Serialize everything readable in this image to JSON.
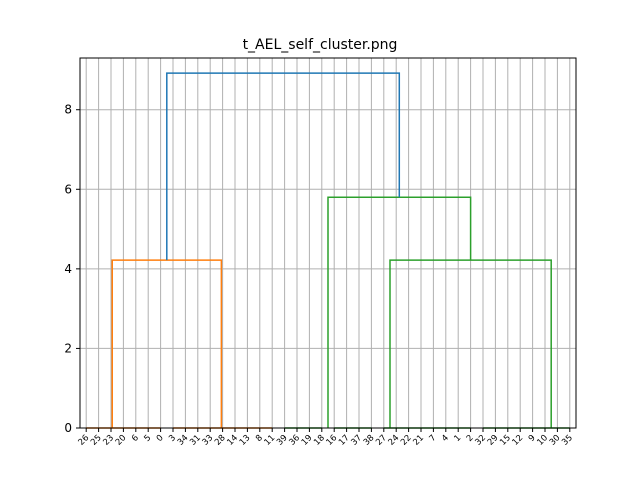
{
  "chart_data": {
    "type": "dendrogram",
    "title": "t_AEL_self_cluster.png",
    "xlabel": "",
    "ylabel": "",
    "ylim": [
      0,
      9.3
    ],
    "yticks": [
      0,
      2,
      4,
      6,
      8
    ],
    "grid": true,
    "leaf_labels": [
      "26",
      "25",
      "23",
      "20",
      "6",
      "5",
      "0",
      "3",
      "34",
      "31",
      "33",
      "28",
      "14",
      "13",
      "8",
      "11",
      "39",
      "36",
      "19",
      "18",
      "16",
      "17",
      "37",
      "38",
      "27",
      "24",
      "22",
      "21",
      "7",
      "4",
      "1",
      "2",
      "32",
      "29",
      "15",
      "12",
      "9",
      "10",
      "30",
      "35"
    ],
    "merges": [
      {
        "left": [
          0,
          6
        ],
        "right": [
          7,
          15
        ],
        "height": 4.22,
        "color": "#ff7f0e"
      },
      {
        "left": [
          16,
          19
        ],
        "right": [
          20,
          23
        ],
        "height": 5.8,
        "color": "#2ca02c",
        "left_is_cluster": false
      },
      {
        "left": [
          24,
          31
        ],
        "right": [
          32,
          39
        ],
        "height": 4.22,
        "color": "#2ca02c"
      },
      {
        "left": [
          16,
          23
        ],
        "right": [
          24,
          39
        ],
        "height": 5.8,
        "color": "#2ca02c"
      },
      {
        "left": [
          0,
          15
        ],
        "right": [
          16,
          39
        ],
        "height": 8.92,
        "color": "#1f77b4"
      }
    ],
    "links": [
      {
        "x": [
          0.5,
          3,
          3,
          6.5
        ],
        "y": [
          0,
          0,
          0,
          0
        ],
        "color": "#ff7f0e"
      },
      {
        "x": [
          3,
          3,
          13,
          13
        ],
        "y": [
          0,
          4.22,
          4.22,
          0
        ],
        "color": "#ff7f0e"
      },
      {
        "x": [
          10,
          13,
          13,
          18.5
        ],
        "y": [
          0,
          0,
          0,
          0
        ],
        "color": "#ff7f0e"
      },
      {
        "x": [
          20,
          22,
          22,
          28.5
        ],
        "y": [
          0,
          0,
          0,
          0
        ],
        "color": "#2ca02c"
      },
      {
        "x": [
          22,
          22,
          39,
          39
        ],
        "y": [
          0,
          5.8,
          5.8,
          0
        ],
        "color": "#2ca02c"
      },
      {
        "x": [
          29.5,
          34,
          34,
          35
        ],
        "y": [
          0,
          0,
          0,
          0
        ],
        "color": "#2ca02c"
      },
      {
        "x": [
          32.5,
          32.5,
          52.5,
          52.5
        ],
        "y": [
          0,
          4.22,
          4.22,
          0
        ],
        "color": "#2ca02c"
      },
      {
        "x": [
          30,
          32.5,
          32.5,
          38.5
        ],
        "y": [
          0,
          0,
          0,
          0
        ],
        "color": "#2ca02c"
      },
      {
        "x": [
          50,
          52.5,
          52.5,
          58.5
        ],
        "y": [
          0,
          0,
          0,
          0
        ],
        "color": "#2ca02c"
      },
      {
        "x": [
          42.5,
          42.5,
          45.8,
          45.8
        ],
        "y": [
          5.8,
          5.8,
          5.8,
          5.8
        ],
        "color": "#2ca02c"
      },
      {
        "x": [
          8,
          8,
          40,
          40
        ],
        "y": [
          4.22,
          8.92,
          8.92,
          5.8
        ],
        "color": "#1f77b4"
      }
    ],
    "colors": {
      "cluster_1": "#ff7f0e",
      "cluster_2": "#2ca02c",
      "root": "#1f77b4",
      "grid": "#b0b0b0"
    }
  }
}
